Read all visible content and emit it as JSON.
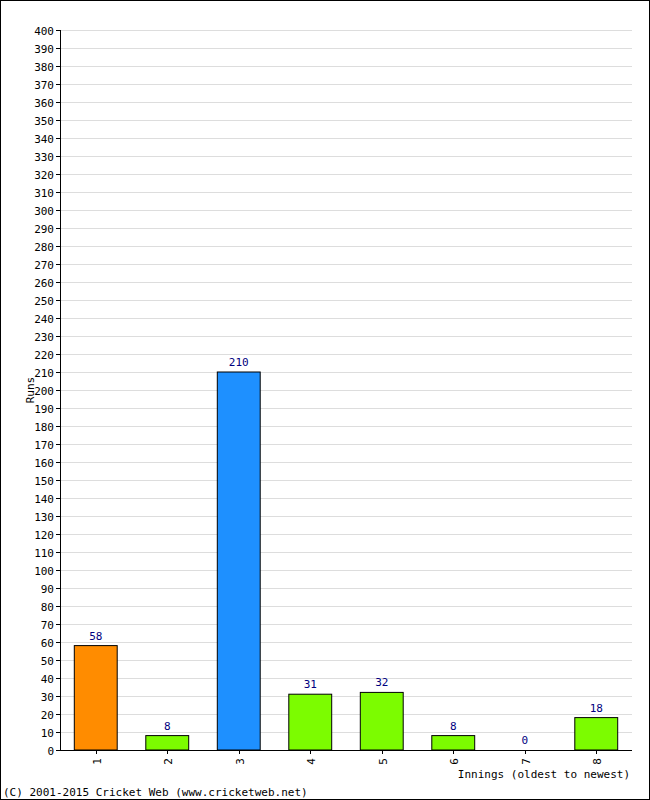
{
  "chart_data": {
    "type": "bar",
    "categories": [
      "1",
      "2",
      "3",
      "4",
      "5",
      "6",
      "7",
      "8"
    ],
    "values": [
      58,
      8,
      210,
      31,
      32,
      8,
      0,
      18
    ],
    "colors": [
      "#ff8c00",
      "#7cfc00",
      "#1e90ff",
      "#7cfc00",
      "#7cfc00",
      "#7cfc00",
      "#7cfc00",
      "#7cfc00"
    ],
    "ylim": [
      0,
      400
    ],
    "yticks": [
      0,
      10,
      20,
      30,
      40,
      50,
      60,
      70,
      80,
      90,
      100,
      110,
      120,
      130,
      140,
      150,
      160,
      170,
      180,
      190,
      200,
      210,
      220,
      230,
      240,
      250,
      260,
      270,
      280,
      290,
      300,
      310,
      320,
      330,
      340,
      350,
      360,
      370,
      380,
      390,
      400
    ],
    "grid": true,
    "data_labels": true,
    "x_label": "Innings (oldest to newest)",
    "y_label": "Runs",
    "annotations": [
      "(C) 2001-2015 Cricket Web (www.cricketweb.net)"
    ]
  }
}
